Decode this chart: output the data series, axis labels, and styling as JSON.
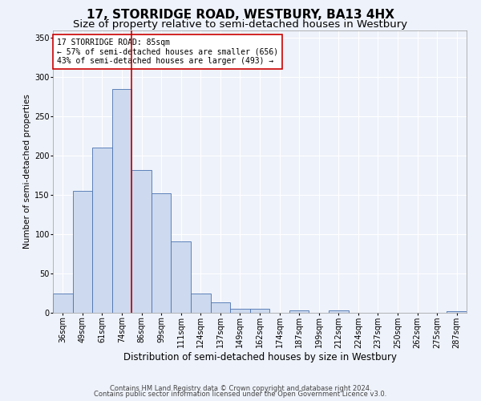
{
  "title": "17, STORRIDGE ROAD, WESTBURY, BA13 4HX",
  "subtitle": "Size of property relative to semi-detached houses in Westbury",
  "xlabel": "Distribution of semi-detached houses by size in Westbury",
  "ylabel": "Number of semi-detached properties",
  "bin_labels": [
    "36sqm",
    "49sqm",
    "61sqm",
    "74sqm",
    "86sqm",
    "99sqm",
    "111sqm",
    "124sqm",
    "137sqm",
    "149sqm",
    "162sqm",
    "174sqm",
    "187sqm",
    "199sqm",
    "212sqm",
    "224sqm",
    "237sqm",
    "250sqm",
    "262sqm",
    "275sqm",
    "287sqm"
  ],
  "bar_values": [
    25,
    155,
    210,
    285,
    182,
    152,
    91,
    25,
    13,
    5,
    5,
    0,
    3,
    0,
    3,
    0,
    0,
    0,
    0,
    0,
    2
  ],
  "bar_color": "#ccd9ee",
  "bar_edge_color": "#4a72b0",
  "vline_x": 3.5,
  "vline_color": "#cc0000",
  "annotation_text": "17 STORRIDGE ROAD: 85sqm\n← 57% of semi-detached houses are smaller (656)\n43% of semi-detached houses are larger (493) →",
  "annotation_box_color": "#ffffff",
  "annotation_box_edge_color": "#cc0000",
  "ylim": [
    0,
    360
  ],
  "yticks": [
    0,
    50,
    100,
    150,
    200,
    250,
    300,
    350
  ],
  "footer1": "Contains HM Land Registry data © Crown copyright and database right 2024.",
  "footer2": "Contains public sector information licensed under the Open Government Licence v3.0.",
  "background_color": "#eef2fa",
  "grid_color": "#ffffff",
  "title_fontsize": 11,
  "subtitle_fontsize": 9.5,
  "xlabel_fontsize": 8.5,
  "ylabel_fontsize": 7.5,
  "tick_fontsize": 7,
  "annotation_fontsize": 7,
  "footer_fontsize": 6
}
